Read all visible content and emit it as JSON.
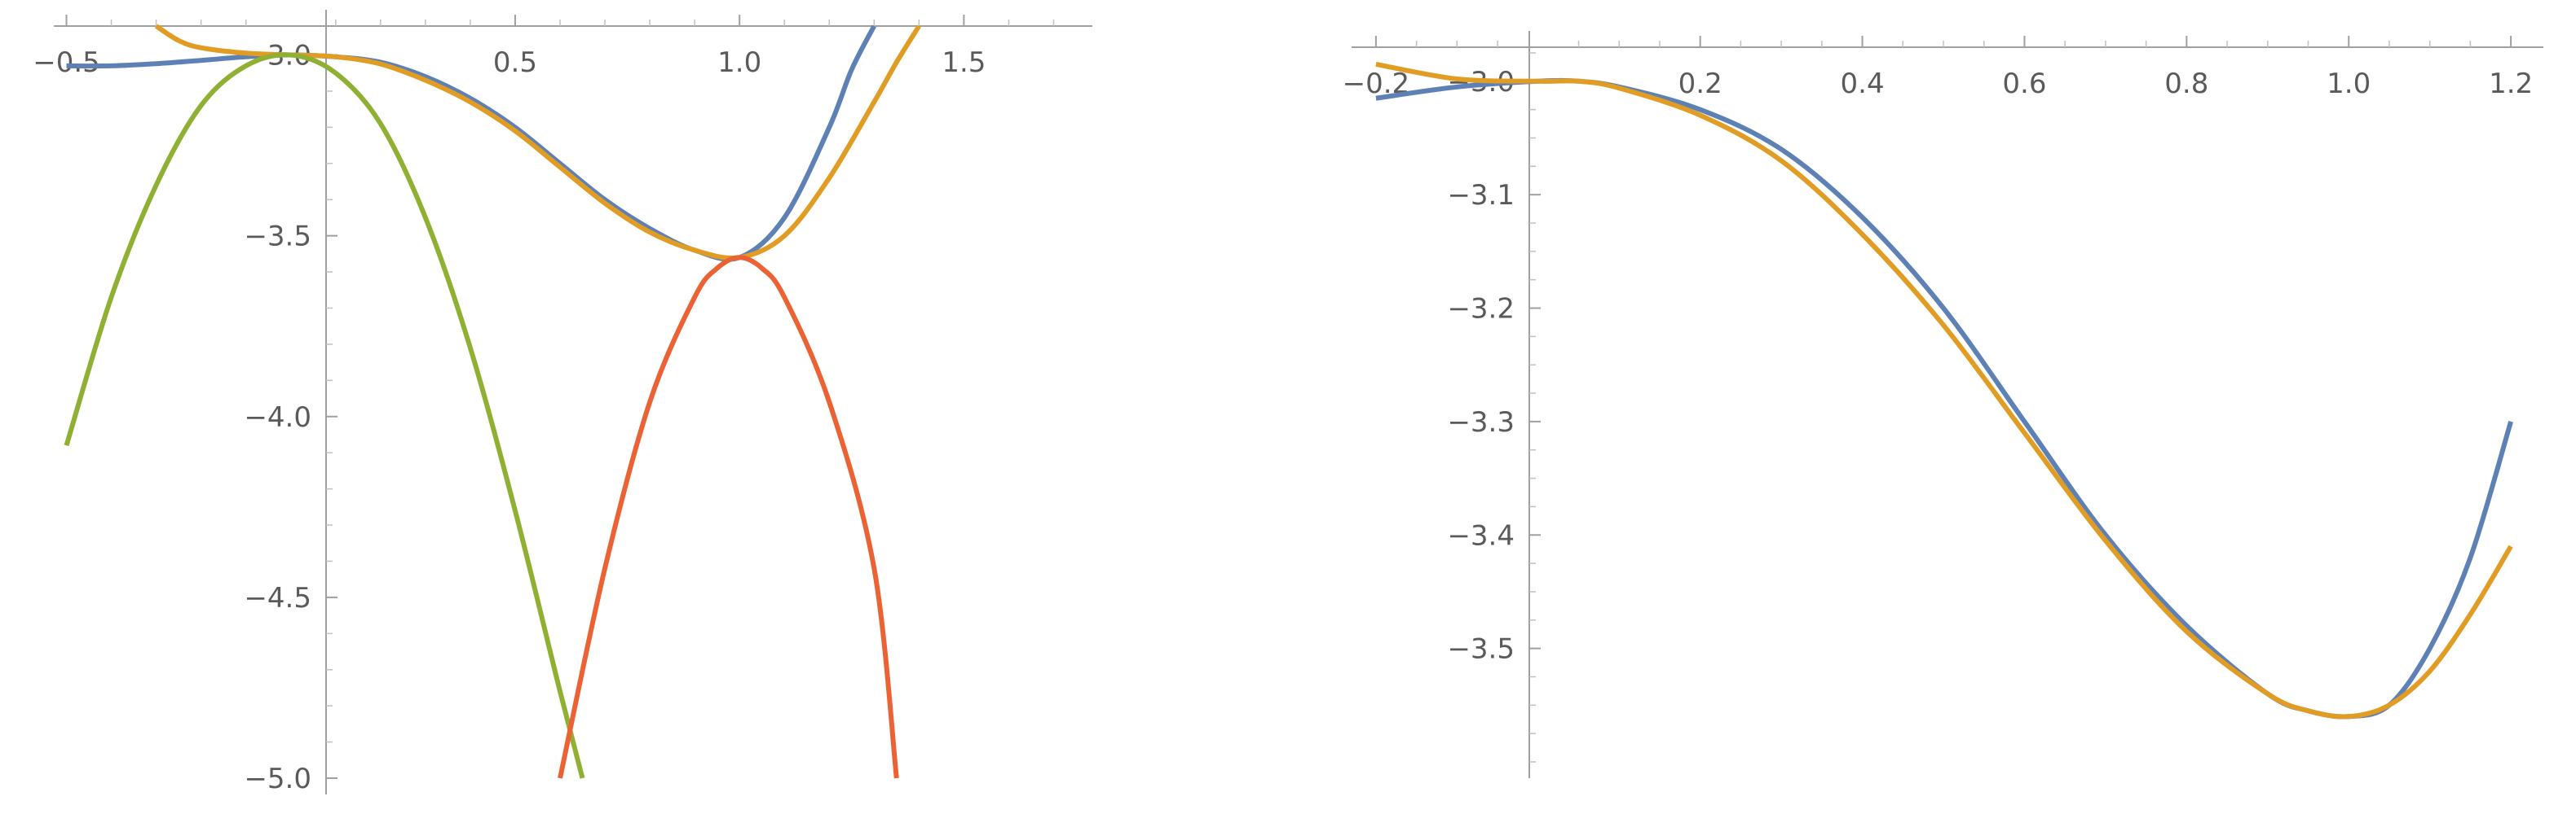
{
  "chart_data": [
    {
      "type": "line",
      "title": "",
      "xlabel": "",
      "ylabel": "",
      "xlim": [
        -0.51,
        1.75
      ],
      "ylim": [
        -5.0,
        -2.92
      ],
      "x_ticks": [
        -0.5,
        0.5,
        1.0,
        1.5
      ],
      "x_tick_labels": [
        "-0.5",
        "0.5",
        "1.0",
        "1.5"
      ],
      "y_ticks": [
        -3.0,
        -3.5,
        -4.0,
        -4.5,
        -5.0
      ],
      "y_tick_labels": [
        "-3.0",
        "-3.5",
        "-4.0",
        "-4.5",
        "-5.0"
      ],
      "grid": false,
      "series": [
        {
          "color": "#5e81b5",
          "x": [
            -0.5,
            -0.4,
            -0.3,
            -0.2,
            -0.1,
            0.0,
            0.1,
            0.2,
            0.3,
            0.4,
            0.5,
            0.6,
            0.7,
            0.8,
            0.9,
            1.0,
            1.1,
            1.2,
            1.25,
            1.3
          ],
          "y": [
            -3.03,
            -3.03,
            -3.024,
            -3.015,
            -3.005,
            -3.0,
            -3.005,
            -3.02,
            -3.06,
            -3.12,
            -3.2,
            -3.3,
            -3.4,
            -3.48,
            -3.54,
            -3.56,
            -3.45,
            -3.2,
            -3.04,
            -2.92
          ]
        },
        {
          "color": "#e19c24",
          "x": [
            -0.3,
            -0.25,
            -0.2,
            -0.1,
            0.0,
            0.1,
            0.2,
            0.3,
            0.4,
            0.5,
            0.6,
            0.7,
            0.8,
            0.9,
            1.0,
            1.1,
            1.2,
            1.3,
            1.35,
            1.4
          ],
          "y": [
            -2.92,
            -2.96,
            -2.98,
            -2.995,
            -3.0,
            -3.005,
            -3.025,
            -3.07,
            -3.13,
            -3.21,
            -3.31,
            -3.41,
            -3.49,
            -3.54,
            -3.56,
            -3.5,
            -3.34,
            -3.13,
            -3.02,
            -2.92
          ]
        },
        {
          "color": "#8fb032",
          "x": [
            -0.5,
            -0.4,
            -0.3,
            -0.2,
            -0.1,
            0.0,
            0.1,
            0.2,
            0.3,
            0.4,
            0.5,
            0.6,
            0.65
          ],
          "y": [
            -4.08,
            -3.67,
            -3.36,
            -3.14,
            -3.03,
            -3.0,
            -3.05,
            -3.19,
            -3.45,
            -3.81,
            -4.26,
            -4.76,
            -5.0
          ]
        },
        {
          "color": "#eb6235",
          "x": [
            0.6,
            0.7,
            0.8,
            0.9,
            0.95,
            1.0,
            1.05,
            1.1,
            1.2,
            1.3,
            1.35
          ],
          "y": [
            -5.0,
            -4.42,
            -3.96,
            -3.67,
            -3.59,
            -3.56,
            -3.59,
            -3.67,
            -3.96,
            -4.42,
            -5.0
          ]
        }
      ]
    },
    {
      "type": "line",
      "title": "",
      "xlabel": "",
      "ylabel": "",
      "xlim": [
        -0.22,
        1.22
      ],
      "ylim": [
        -3.6,
        -2.97
      ],
      "x_ticks": [
        -0.2,
        0.2,
        0.4,
        0.6,
        0.8,
        1.0,
        1.2
      ],
      "x_tick_labels": [
        "-0.2",
        "0.2",
        "0.4",
        "0.6",
        "0.8",
        "1.0",
        "1.2"
      ],
      "y_ticks": [
        -3.0,
        -3.1,
        -3.2,
        -3.3,
        -3.4,
        -3.5
      ],
      "y_tick_labels": [
        "-3.0",
        "-3.1",
        "-3.2",
        "-3.3",
        "-3.4",
        "-3.5"
      ],
      "grid": false,
      "series": [
        {
          "color": "#5e81b5",
          "x": [
            -0.2,
            -0.1,
            0.0,
            0.05,
            0.1,
            0.2,
            0.3,
            0.4,
            0.5,
            0.6,
            0.7,
            0.8,
            0.9,
            0.95,
            1.0,
            1.05,
            1.1,
            1.15,
            1.2
          ],
          "y": [
            -3.015,
            -3.005,
            -3.0,
            -3.0,
            -3.005,
            -3.025,
            -3.06,
            -3.12,
            -3.2,
            -3.3,
            -3.4,
            -3.48,
            -3.54,
            -3.555,
            -3.56,
            -3.55,
            -3.5,
            -3.42,
            -3.3
          ]
        },
        {
          "color": "#e19c24",
          "x": [
            -0.2,
            -0.1,
            0.0,
            0.05,
            0.1,
            0.2,
            0.3,
            0.4,
            0.5,
            0.6,
            0.7,
            0.8,
            0.9,
            0.95,
            1.0,
            1.05,
            1.1,
            1.15,
            1.2
          ],
          "y": [
            -2.985,
            -2.998,
            -3.0,
            -3.0,
            -3.006,
            -3.03,
            -3.07,
            -3.135,
            -3.215,
            -3.31,
            -3.405,
            -3.485,
            -3.54,
            -3.555,
            -3.56,
            -3.55,
            -3.52,
            -3.47,
            -3.41
          ]
        }
      ]
    }
  ]
}
